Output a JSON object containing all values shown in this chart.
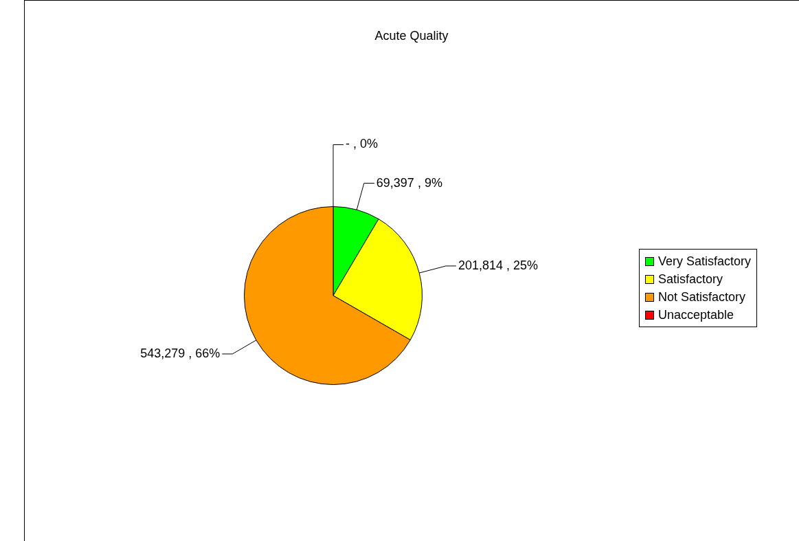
{
  "chart_data": {
    "type": "pie",
    "title": "Acute Quality",
    "categories": [
      "Very Satisfactory",
      "Satisfactory",
      "Not Satisfactory",
      "Unacceptable"
    ],
    "values": [
      69397,
      201814,
      543279,
      0
    ],
    "value_labels": [
      "69,397 , 9%",
      "201,814 , 25%",
      "543,279 , 66%",
      "- , 0%"
    ],
    "colors": [
      "#00ff00",
      "#ffff00",
      "#ff9900",
      "#ff0000"
    ],
    "legend": "right"
  }
}
